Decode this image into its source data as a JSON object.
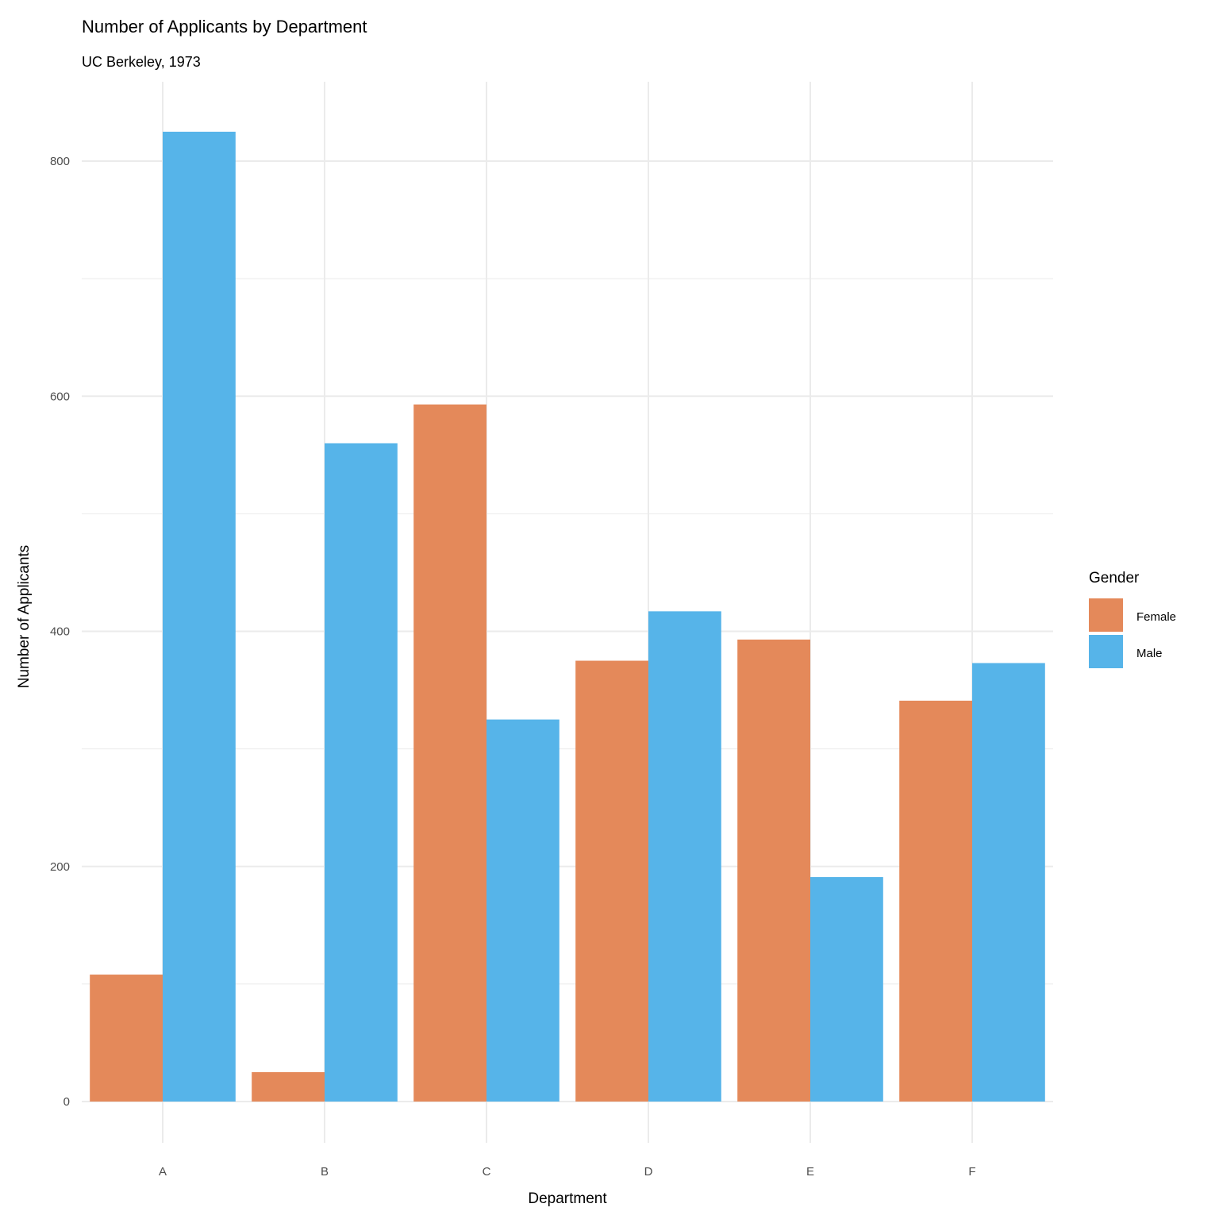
{
  "chart_data": {
    "type": "bar",
    "title": "Number of Applicants by Department",
    "subtitle": "UC Berkeley, 1973",
    "xlabel": "Department",
    "ylabel": "Number of Applicants",
    "categories": [
      "A",
      "B",
      "C",
      "D",
      "E",
      "F"
    ],
    "series": [
      {
        "name": "Female",
        "color": "#E4895A",
        "values": [
          108,
          25,
          593,
          375,
          393,
          341
        ]
      },
      {
        "name": "Male",
        "color": "#56B4E9",
        "values": [
          825,
          560,
          325,
          417,
          191,
          373
        ]
      }
    ],
    "ylim": [
      -35,
      867
    ],
    "yticks": [
      0,
      200,
      400,
      600,
      800
    ],
    "grid": true,
    "legend": {
      "title": "Gender",
      "position": "right"
    },
    "bar_mode": "dodge"
  }
}
